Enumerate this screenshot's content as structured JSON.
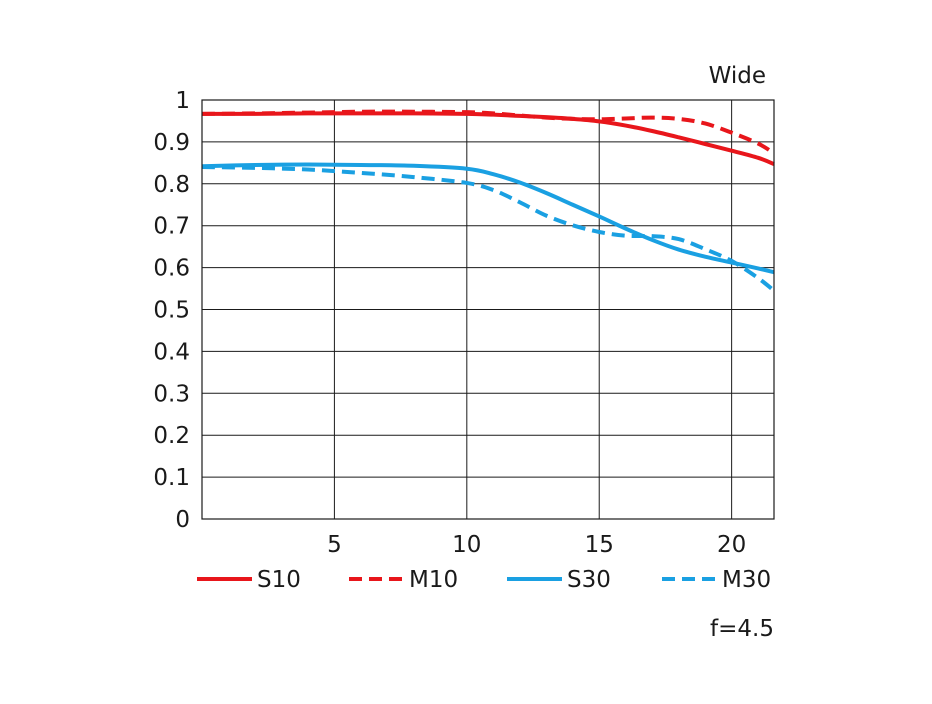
{
  "chart_data": {
    "type": "line",
    "corner_label": "Wide",
    "footnote": "f=4.5",
    "xlim": [
      0,
      21.6
    ],
    "ylim": [
      0,
      1
    ],
    "x_ticks": [
      5,
      10,
      15,
      20
    ],
    "y_ticks": [
      0,
      0.1,
      0.2,
      0.3,
      0.4,
      0.5,
      0.6,
      0.7,
      0.8,
      0.9,
      1
    ],
    "grid": true,
    "legend_placement": "bottom",
    "series": [
      {
        "name": "S10",
        "color": "#e8161b",
        "dash": "solid",
        "x": [
          0,
          2,
          4,
          6,
          8,
          10,
          11,
          12,
          13,
          14,
          15,
          16,
          17,
          18,
          19,
          20,
          21,
          21.6
        ],
        "y": [
          0.967,
          0.967,
          0.968,
          0.968,
          0.968,
          0.967,
          0.965,
          0.962,
          0.959,
          0.955,
          0.949,
          0.939,
          0.926,
          0.911,
          0.895,
          0.879,
          0.862,
          0.847
        ]
      },
      {
        "name": "M10",
        "color": "#e8161b",
        "dash": "dashed",
        "x": [
          0,
          2,
          4,
          6,
          8,
          10,
          11,
          12,
          13,
          14,
          15,
          16,
          17,
          18,
          19,
          20,
          21,
          21.6
        ],
        "y": [
          0.967,
          0.968,
          0.97,
          0.972,
          0.972,
          0.971,
          0.968,
          0.963,
          0.958,
          0.955,
          0.954,
          0.956,
          0.958,
          0.955,
          0.944,
          0.922,
          0.896,
          0.873
        ]
      },
      {
        "name": "S30",
        "color": "#1aa0e2",
        "dash": "solid",
        "x": [
          0,
          2,
          4,
          6,
          8,
          10,
          11,
          12,
          13,
          14,
          15,
          16,
          17,
          18,
          19,
          20,
          21,
          21.6
        ],
        "y": [
          0.842,
          0.845,
          0.846,
          0.845,
          0.843,
          0.836,
          0.823,
          0.803,
          0.778,
          0.75,
          0.722,
          0.693,
          0.666,
          0.643,
          0.626,
          0.612,
          0.598,
          0.589
        ]
      },
      {
        "name": "M30",
        "color": "#1aa0e2",
        "dash": "dashed",
        "x": [
          0,
          2,
          4,
          6,
          8,
          10,
          11,
          12,
          13,
          14,
          15,
          16,
          17,
          18,
          19,
          20,
          21,
          21.6
        ],
        "y": [
          0.84,
          0.838,
          0.834,
          0.826,
          0.816,
          0.802,
          0.785,
          0.756,
          0.724,
          0.701,
          0.685,
          0.676,
          0.675,
          0.668,
          0.644,
          0.616,
          0.575,
          0.545
        ]
      }
    ]
  }
}
